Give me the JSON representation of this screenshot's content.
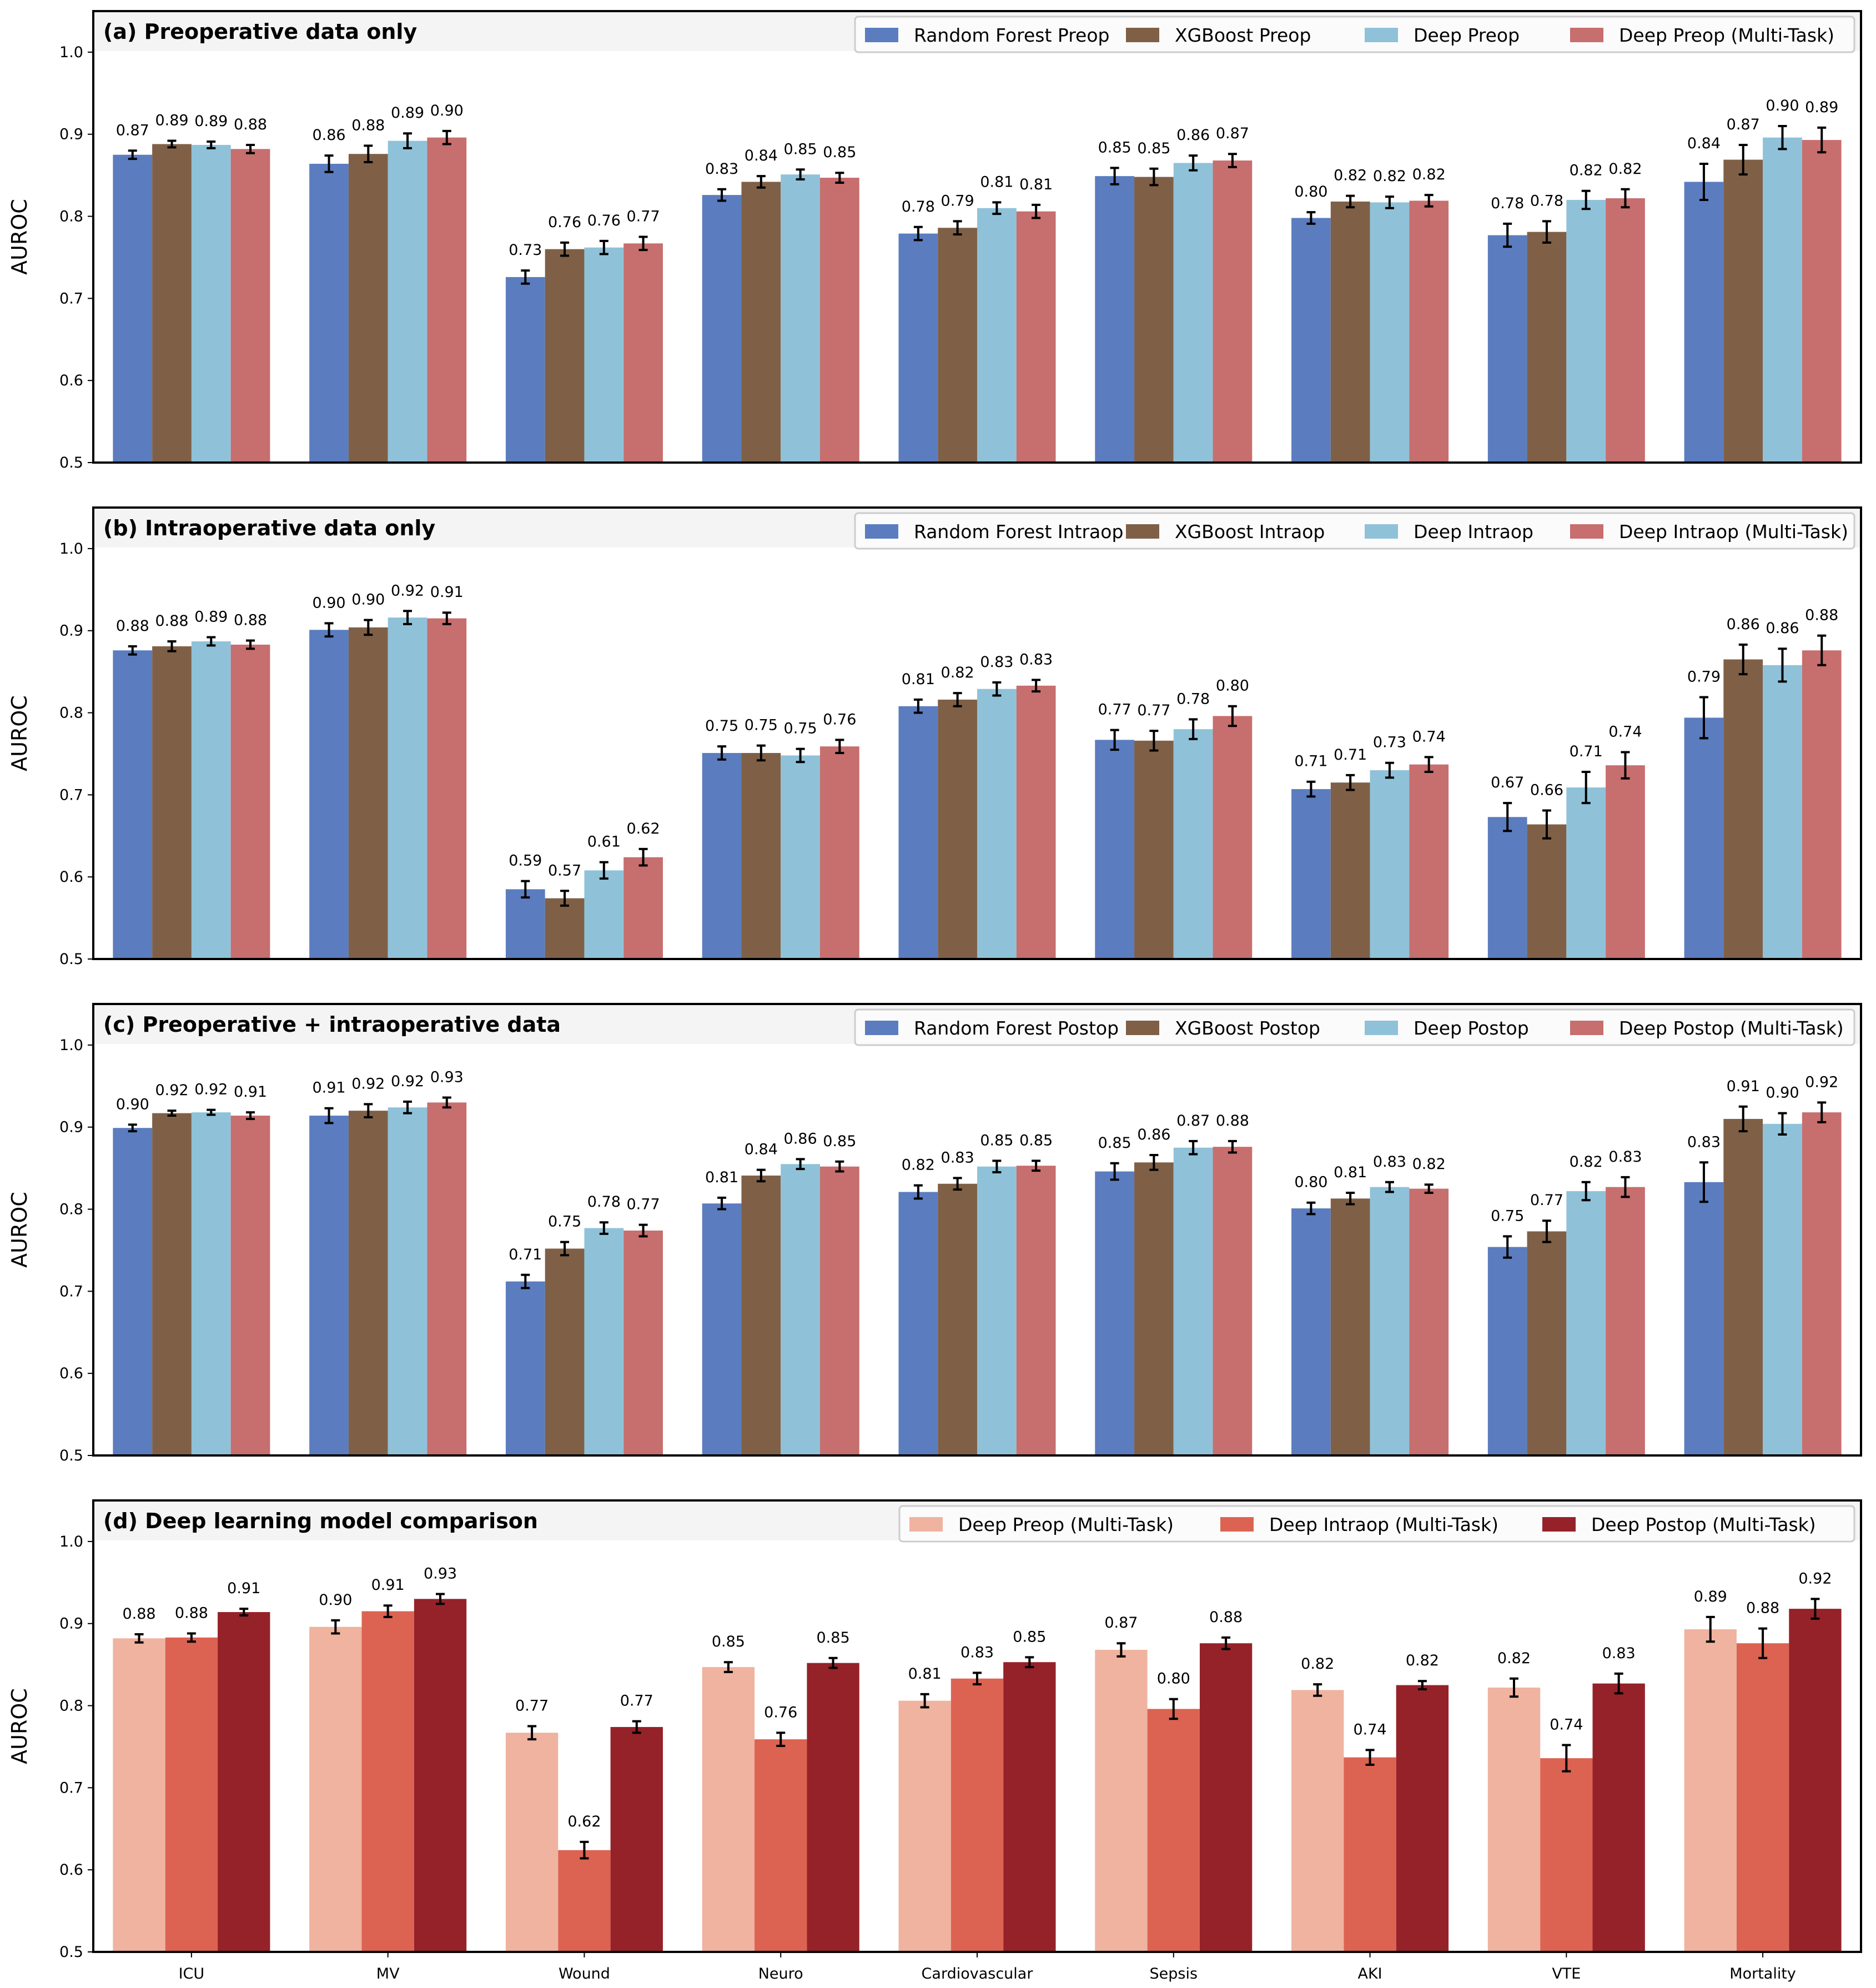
{
  "chart_data": {
    "type": "bar",
    "categories": [
      "ICU",
      "MV",
      "Wound",
      "Neuro",
      "Cardiovascular",
      "Sepsis",
      "AKI",
      "VTE",
      "Mortality"
    ],
    "ylabel": "AUROC",
    "ylim": [
      0.5,
      1.05
    ],
    "yticks": [
      "0.5",
      "0.6",
      "0.7",
      "0.8",
      "0.9",
      "1.0"
    ],
    "grid": false,
    "legend_position": "top-right",
    "panels": [
      {
        "title": "(a) Preoperative data only",
        "series": [
          {
            "name": "Random Forest Preop",
            "color": "#5b7dbf",
            "values": [
              0.875,
              0.864,
              0.726,
              0.826,
              0.779,
              0.849,
              0.798,
              0.777,
              0.842
            ],
            "labels": [
              "0.87",
              "0.86",
              "0.73",
              "0.83",
              "0.78",
              "0.85",
              "0.80",
              "0.78",
              "0.84"
            ],
            "errors": [
              0.005,
              0.01,
              0.008,
              0.007,
              0.008,
              0.01,
              0.007,
              0.014,
              0.022
            ]
          },
          {
            "name": "XGBoost Preop",
            "color": "#7f6047",
            "values": [
              0.888,
              0.876,
              0.76,
              0.842,
              0.786,
              0.848,
              0.818,
              0.781,
              0.869
            ],
            "labels": [
              "0.89",
              "0.88",
              "0.76",
              "0.84",
              "0.79",
              "0.85",
              "0.82",
              "0.78",
              "0.87"
            ],
            "errors": [
              0.004,
              0.01,
              0.008,
              0.007,
              0.008,
              0.01,
              0.007,
              0.013,
              0.018
            ]
          },
          {
            "name": "Deep Preop",
            "color": "#8fc2d9",
            "values": [
              0.887,
              0.892,
              0.762,
              0.851,
              0.81,
              0.865,
              0.817,
              0.82,
              0.896
            ],
            "labels": [
              "0.89",
              "0.89",
              "0.76",
              "0.85",
              "0.81",
              "0.86",
              "0.82",
              "0.82",
              "0.90"
            ],
            "errors": [
              0.004,
              0.009,
              0.008,
              0.006,
              0.007,
              0.009,
              0.007,
              0.011,
              0.014
            ]
          },
          {
            "name": "Deep Preop (Multi-Task)",
            "color": "#c76e6e",
            "values": [
              0.882,
              0.896,
              0.767,
              0.847,
              0.806,
              0.868,
              0.819,
              0.822,
              0.893
            ],
            "labels": [
              "0.88",
              "0.90",
              "0.77",
              "0.85",
              "0.81",
              "0.87",
              "0.82",
              "0.82",
              "0.89"
            ],
            "errors": [
              0.005,
              0.008,
              0.008,
              0.006,
              0.008,
              0.008,
              0.007,
              0.011,
              0.015
            ]
          }
        ]
      },
      {
        "title": "(b) Intraoperative data only",
        "series": [
          {
            "name": "Random Forest Intraop",
            "color": "#5b7dbf",
            "values": [
              0.876,
              0.901,
              0.585,
              0.751,
              0.808,
              0.767,
              0.707,
              0.673,
              0.794
            ],
            "labels": [
              "0.88",
              "0.90",
              "0.59",
              "0.75",
              "0.81",
              "0.77",
              "0.71",
              "0.67",
              "0.79"
            ],
            "errors": [
              0.005,
              0.008,
              0.01,
              0.008,
              0.008,
              0.012,
              0.009,
              0.017,
              0.025
            ]
          },
          {
            "name": "XGBoost Intraop",
            "color": "#7f6047",
            "values": [
              0.881,
              0.904,
              0.574,
              0.751,
              0.816,
              0.766,
              0.715,
              0.664,
              0.865
            ],
            "labels": [
              "0.88",
              "0.90",
              "0.57",
              "0.75",
              "0.82",
              "0.77",
              "0.71",
              "0.66",
              "0.86"
            ],
            "errors": [
              0.006,
              0.009,
              0.009,
              0.009,
              0.008,
              0.012,
              0.009,
              0.017,
              0.018
            ]
          },
          {
            "name": "Deep Intraop",
            "color": "#8fc2d9",
            "values": [
              0.887,
              0.916,
              0.608,
              0.748,
              0.829,
              0.78,
              0.73,
              0.709,
              0.858
            ],
            "labels": [
              "0.89",
              "0.92",
              "0.61",
              "0.75",
              "0.83",
              "0.78",
              "0.73",
              "0.71",
              "0.86"
            ],
            "errors": [
              0.005,
              0.008,
              0.01,
              0.008,
              0.008,
              0.012,
              0.009,
              0.019,
              0.02
            ]
          },
          {
            "name": "Deep Intraop (Multi-Task)",
            "color": "#c76e6e",
            "values": [
              0.883,
              0.915,
              0.624,
              0.759,
              0.833,
              0.796,
              0.737,
              0.736,
              0.876
            ],
            "labels": [
              "0.88",
              "0.91",
              "0.62",
              "0.76",
              "0.83",
              "0.80",
              "0.74",
              "0.74",
              "0.88"
            ],
            "errors": [
              0.005,
              0.007,
              0.01,
              0.008,
              0.007,
              0.012,
              0.009,
              0.016,
              0.018
            ]
          }
        ]
      },
      {
        "title": "(c) Preoperative + intraoperative data",
        "series": [
          {
            "name": "Random Forest Postop",
            "color": "#5b7dbf",
            "values": [
              0.899,
              0.914,
              0.712,
              0.807,
              0.821,
              0.846,
              0.801,
              0.754,
              0.833
            ],
            "labels": [
              "0.90",
              "0.91",
              "0.71",
              "0.81",
              "0.82",
              "0.85",
              "0.80",
              "0.75",
              "0.83"
            ],
            "errors": [
              0.004,
              0.009,
              0.008,
              0.007,
              0.008,
              0.01,
              0.007,
              0.013,
              0.024
            ]
          },
          {
            "name": "XGBoost Postop",
            "color": "#7f6047",
            "values": [
              0.917,
              0.92,
              0.752,
              0.841,
              0.831,
              0.857,
              0.813,
              0.773,
              0.91
            ],
            "labels": [
              "0.92",
              "0.92",
              "0.75",
              "0.84",
              "0.83",
              "0.86",
              "0.81",
              "0.77",
              "0.91"
            ],
            "errors": [
              0.003,
              0.008,
              0.008,
              0.007,
              0.007,
              0.009,
              0.007,
              0.013,
              0.015
            ]
          },
          {
            "name": "Deep Postop",
            "color": "#8fc2d9",
            "values": [
              0.918,
              0.924,
              0.777,
              0.855,
              0.852,
              0.875,
              0.827,
              0.822,
              0.904
            ],
            "labels": [
              "0.92",
              "0.92",
              "0.78",
              "0.86",
              "0.85",
              "0.87",
              "0.83",
              "0.82",
              "0.90"
            ],
            "errors": [
              0.003,
              0.007,
              0.007,
              0.006,
              0.007,
              0.008,
              0.006,
              0.011,
              0.013
            ]
          },
          {
            "name": "Deep Postop (Multi-Task)",
            "color": "#c76e6e",
            "values": [
              0.914,
              0.93,
              0.774,
              0.852,
              0.853,
              0.876,
              0.825,
              0.827,
              0.918
            ],
            "labels": [
              "0.91",
              "0.93",
              "0.77",
              "0.85",
              "0.85",
              "0.88",
              "0.82",
              "0.83",
              "0.92"
            ],
            "errors": [
              0.004,
              0.006,
              0.007,
              0.006,
              0.006,
              0.007,
              0.005,
              0.012,
              0.012
            ]
          }
        ]
      },
      {
        "title": "(d) Deep learning model comparison",
        "series": [
          {
            "name": "Deep Preop (Multi-Task)",
            "color": "#efb3a0",
            "values": [
              0.882,
              0.896,
              0.767,
              0.847,
              0.806,
              0.868,
              0.819,
              0.822,
              0.893
            ],
            "labels": [
              "0.88",
              "0.90",
              "0.77",
              "0.85",
              "0.81",
              "0.87",
              "0.82",
              "0.82",
              "0.89"
            ],
            "errors": [
              0.005,
              0.008,
              0.008,
              0.006,
              0.008,
              0.008,
              0.007,
              0.011,
              0.015
            ]
          },
          {
            "name": "Deep Intraop (Multi-Task)",
            "color": "#dc6352",
            "values": [
              0.883,
              0.915,
              0.624,
              0.759,
              0.833,
              0.796,
              0.737,
              0.736,
              0.876
            ],
            "labels": [
              "0.88",
              "0.91",
              "0.62",
              "0.76",
              "0.83",
              "0.80",
              "0.74",
              "0.74",
              "0.88"
            ],
            "errors": [
              0.005,
              0.007,
              0.01,
              0.008,
              0.007,
              0.012,
              0.009,
              0.016,
              0.018
            ]
          },
          {
            "name": "Deep Postop (Multi-Task)",
            "color": "#952228",
            "values": [
              0.914,
              0.93,
              0.774,
              0.852,
              0.853,
              0.876,
              0.825,
              0.827,
              0.918
            ],
            "labels": [
              "0.91",
              "0.93",
              "0.77",
              "0.85",
              "0.85",
              "0.88",
              "0.82",
              "0.83",
              "0.92"
            ],
            "errors": [
              0.004,
              0.006,
              0.007,
              0.006,
              0.006,
              0.007,
              0.005,
              0.012,
              0.012
            ]
          }
        ]
      }
    ]
  }
}
